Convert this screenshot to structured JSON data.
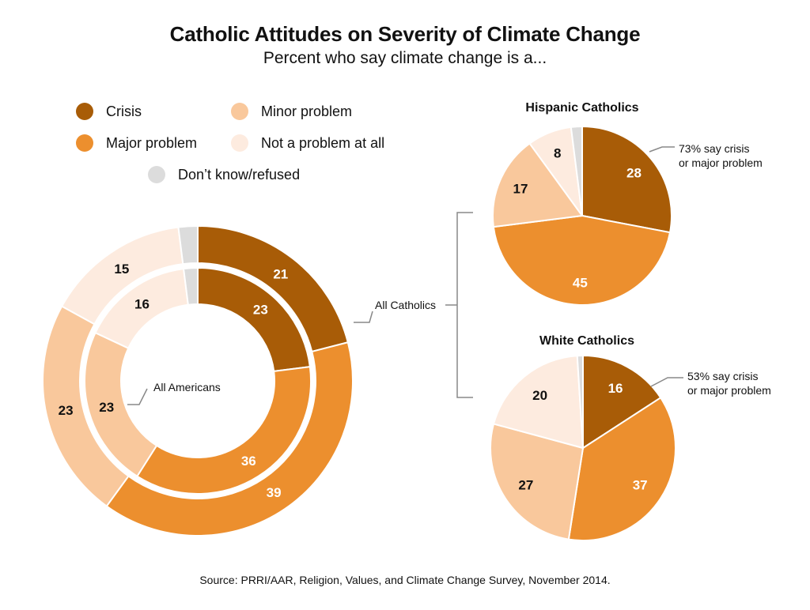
{
  "title": "Catholic Attitudes on Severity of Climate Change",
  "subtitle": "Percent who say climate change is a...",
  "source": "Source: PRRI/AAR, Religion, Values, and Climate Change Survey, November 2014.",
  "colors": {
    "crisis": "#A85C07",
    "major": "#EC8F2E",
    "minor": "#F9C89C",
    "not": "#FDEBDF",
    "dk": "#DCDCDC",
    "connector": "#888888"
  },
  "legend": [
    {
      "key": "crisis",
      "label": "Crisis"
    },
    {
      "key": "minor",
      "label": "Minor problem"
    },
    {
      "key": "major",
      "label": "Major problem"
    },
    {
      "key": "not",
      "label": "Not a problem at all"
    },
    {
      "key": "dk",
      "label": "Don’t know/refused"
    }
  ],
  "callouts": {
    "all_catholics": "All Catholics",
    "all_americans": "All Americans"
  },
  "hispanic": {
    "title": "Hispanic Catholics",
    "note": "73% say crisis\nor major problem"
  },
  "white": {
    "title": "White Catholics",
    "note": "53% say crisis\nor major problem"
  },
  "chart_data": [
    {
      "type": "pie",
      "subtype": "donut-outer",
      "title": "All Catholics",
      "categories": [
        "Crisis",
        "Major problem",
        "Minor problem",
        "Not a problem at all",
        "Don’t know/refused"
      ],
      "values": [
        21,
        39,
        23,
        15,
        2
      ],
      "labels": [
        "21",
        "39",
        "23",
        "15",
        ""
      ]
    },
    {
      "type": "pie",
      "subtype": "donut-inner",
      "title": "All Americans",
      "categories": [
        "Crisis",
        "Major problem",
        "Minor problem",
        "Not a problem at all",
        "Don’t know/refused"
      ],
      "values": [
        23,
        36,
        23,
        16,
        2
      ],
      "labels": [
        "23",
        "36",
        "23",
        "16",
        ""
      ]
    },
    {
      "type": "pie",
      "title": "Hispanic Catholics",
      "categories": [
        "Crisis",
        "Major problem",
        "Minor problem",
        "Not a problem at all",
        "Don’t know/refused"
      ],
      "values": [
        28,
        45,
        17,
        8,
        2
      ],
      "labels": [
        "28",
        "45",
        "17",
        "8",
        ""
      ]
    },
    {
      "type": "pie",
      "title": "White Catholics",
      "categories": [
        "Crisis",
        "Major problem",
        "Minor problem",
        "Not a problem at all",
        "Don’t know/refused"
      ],
      "values": [
        16,
        37,
        27,
        20,
        1
      ],
      "labels": [
        "16",
        "37",
        "27",
        "20",
        ""
      ]
    }
  ]
}
